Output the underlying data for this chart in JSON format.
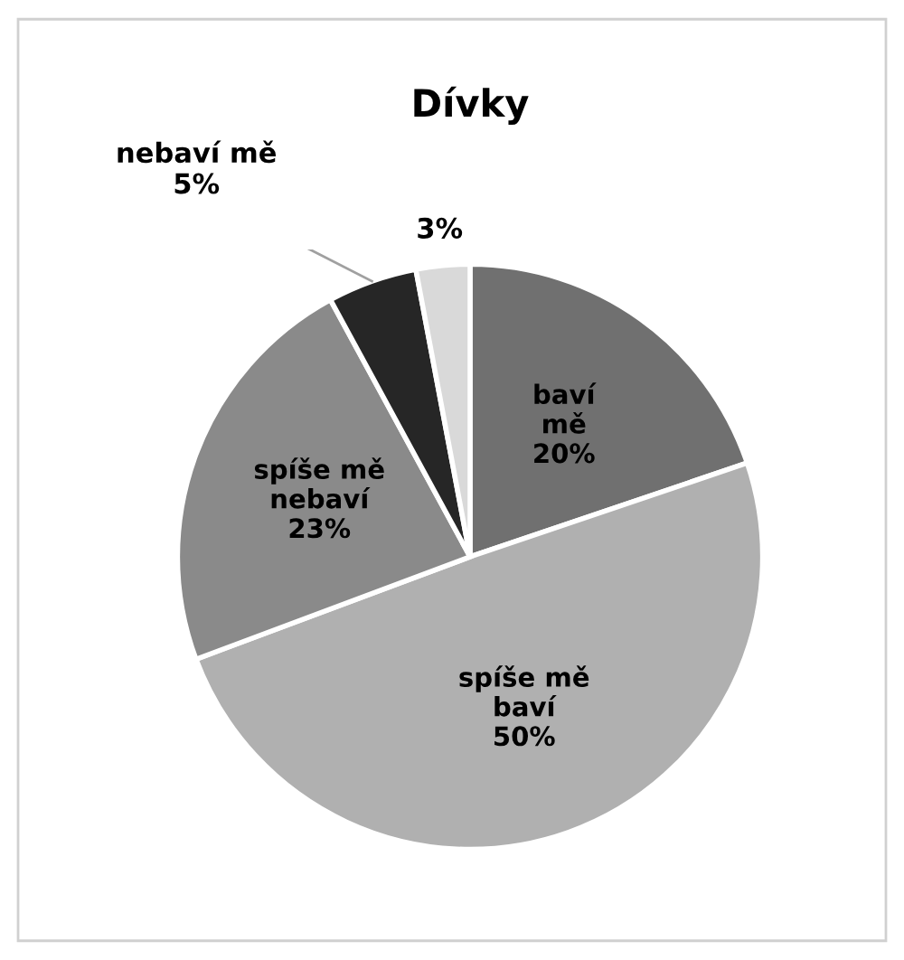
{
  "chart_data": {
    "type": "pie",
    "title": "Dívky",
    "categories": [
      "baví mě",
      "spíše mě baví",
      "spíše mě nebaví",
      "nebaví mě",
      null
    ],
    "values": [
      20,
      50,
      23,
      5,
      3
    ],
    "value_labels": [
      "20%",
      "50%",
      "23%",
      "5%",
      "3%"
    ],
    "colors": [
      "#707070",
      "#b0b0b0",
      "#8a8a8a",
      "#262626",
      "#d9d9d9"
    ],
    "legend": false
  }
}
